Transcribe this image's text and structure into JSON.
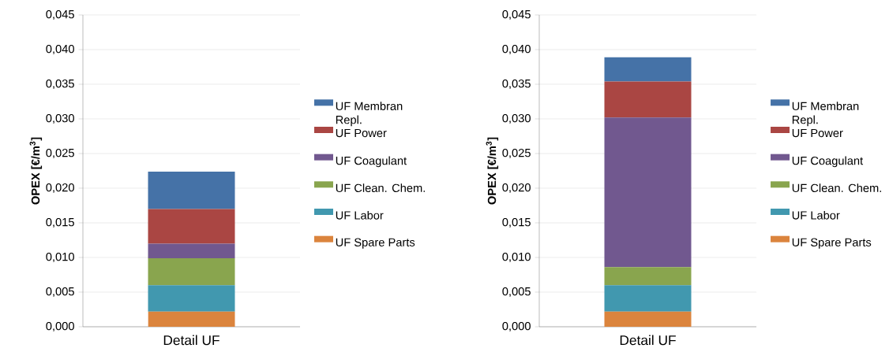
{
  "chart_data": [
    {
      "type": "bar",
      "stacked": true,
      "categories": [
        "Detail UF"
      ],
      "ylabel": "OPEX [€/m$^{3}$]",
      "ylim": [
        0,
        0.045
      ],
      "yticks": [
        {
          "value": 0,
          "label": "0,000"
        },
        {
          "value": 0.005,
          "label": "0,005"
        },
        {
          "value": 0.01,
          "label": "0,010"
        },
        {
          "value": 0.015,
          "label": "0,015"
        },
        {
          "value": 0.02,
          "label": "0,020"
        },
        {
          "value": 0.025,
          "label": "0,025"
        },
        {
          "value": 0.03,
          "label": "0,030"
        },
        {
          "value": 0.035,
          "label": "0,035"
        },
        {
          "value": 0.04,
          "label": "0,040"
        },
        {
          "value": 0.045,
          "label": "0,045"
        }
      ],
      "grid": "y",
      "legend": "right",
      "series": [
        {
          "name": "UF Spare Parts",
          "color": "#db843d",
          "values": [
            0.0022
          ]
        },
        {
          "name": "UF Labor",
          "color": "#4198af",
          "values": [
            0.0038
          ]
        },
        {
          "name": "UF Clean. Chem.",
          "color": "#89a54e",
          "values": [
            0.0039
          ]
        },
        {
          "name": "UF Coagulant",
          "color": "#71588f",
          "values": [
            0.0021
          ]
        },
        {
          "name": "UF Power",
          "color": "#aa4643",
          "values": [
            0.005
          ]
        },
        {
          "name": "UF Membran Repl.",
          "color": "#4572a7",
          "values": [
            0.0054
          ]
        }
      ]
    },
    {
      "type": "bar",
      "stacked": true,
      "categories": [
        "Detail UF"
      ],
      "ylabel": "OPEX [€/m$^{3}$]",
      "ylim": [
        0,
        0.045
      ],
      "yticks": [
        {
          "value": 0,
          "label": "0,000"
        },
        {
          "value": 0.005,
          "label": "0,005"
        },
        {
          "value": 0.01,
          "label": "0,010"
        },
        {
          "value": 0.015,
          "label": "0,015"
        },
        {
          "value": 0.02,
          "label": "0,020"
        },
        {
          "value": 0.025,
          "label": "0,025"
        },
        {
          "value": 0.03,
          "label": "0,030"
        },
        {
          "value": 0.035,
          "label": "0,035"
        },
        {
          "value": 0.04,
          "label": "0,040"
        },
        {
          "value": 0.045,
          "label": "0,045"
        }
      ],
      "grid": "y",
      "legend": "right",
      "series": [
        {
          "name": "UF Spare Parts",
          "color": "#db843d",
          "values": [
            0.0022
          ]
        },
        {
          "name": "UF Labor",
          "color": "#4198af",
          "values": [
            0.0038
          ]
        },
        {
          "name": "UF Clean. Chem.",
          "color": "#89a54e",
          "values": [
            0.0026
          ]
        },
        {
          "name": "UF Coagulant",
          "color": "#71588f",
          "values": [
            0.0216
          ]
        },
        {
          "name": "UF Power",
          "color": "#aa4643",
          "values": [
            0.0052
          ]
        },
        {
          "name": "UF Membran Repl.",
          "color": "#4572a7",
          "values": [
            0.0035
          ]
        }
      ]
    }
  ]
}
